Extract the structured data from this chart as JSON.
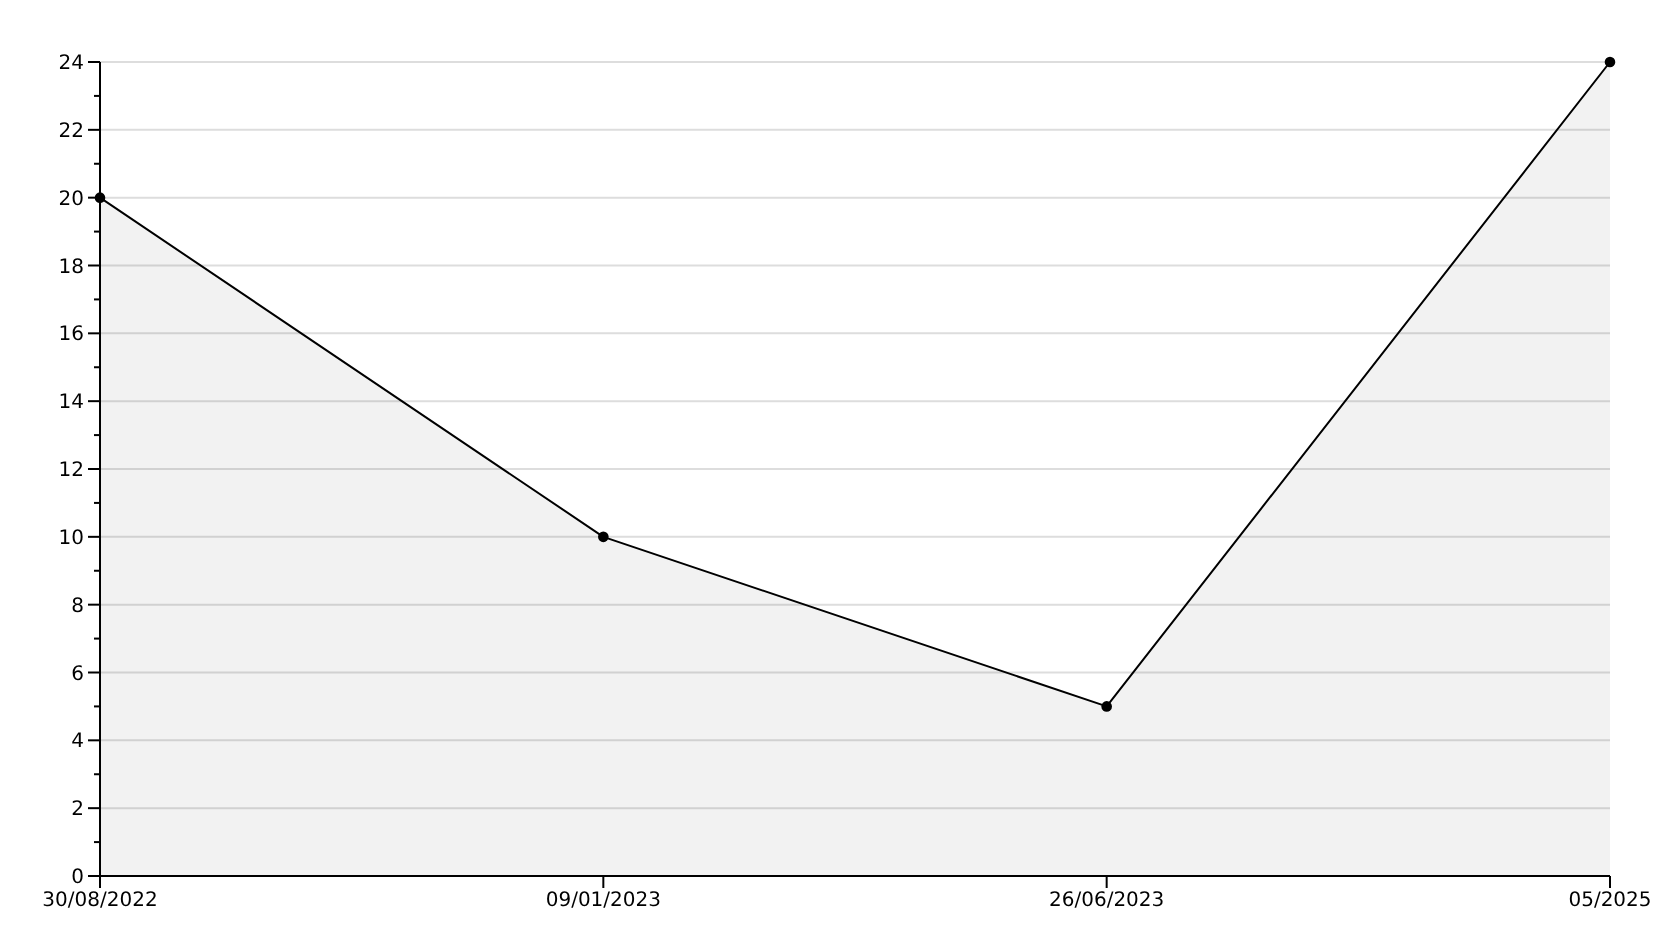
{
  "chart_data": {
    "type": "area",
    "categories": [
      "30/08/2022",
      "09/01/2023",
      "26/06/2023",
      "05/2025"
    ],
    "series": [
      {
        "color": "#000000",
        "values": [
          20,
          10,
          5,
          24
        ]
      }
    ],
    "ylim": [
      0,
      24
    ],
    "yticks": [
      0,
      {
        "value": 1,
        "label": null
      },
      2,
      {
        "value": 3,
        "label": null
      },
      4,
      {
        "value": 5,
        "label": null
      },
      6,
      {
        "value": 7,
        "label": null
      },
      8,
      {
        "value": 9,
        "label": null
      },
      10,
      {
        "value": 11,
        "label": null
      },
      12,
      {
        "value": 13,
        "label": null
      },
      14,
      {
        "value": 15,
        "label": null
      },
      16,
      {
        "value": 17,
        "label": null
      },
      18,
      {
        "value": 19,
        "label": null
      },
      20,
      {
        "value": 21,
        "label": null
      },
      22,
      {
        "value": 23,
        "label": null
      },
      24
    ],
    "grid": "y",
    "marker": "circle"
  }
}
